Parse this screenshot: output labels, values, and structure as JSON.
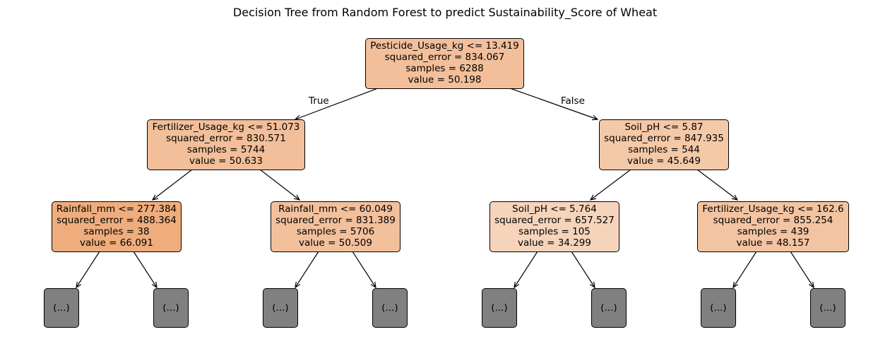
{
  "title": "Decision Tree from Random Forest to predict Sustainability_Score of Wheat",
  "edge_labels": {
    "true": "True",
    "false": "False"
  },
  "nodes": {
    "root": {
      "split": "Pesticide_Usage_kg <= 13.419",
      "squared_error": "squared_error = 834.067",
      "samples": "samples = 6288",
      "value": "value = 50.198",
      "color": "#f3bf9b"
    },
    "l": {
      "split": "Fertilizer_Usage_kg <= 51.073",
      "squared_error": "squared_error = 830.571",
      "samples": "samples = 5744",
      "value": "value = 50.633",
      "color": "#f2bf9a"
    },
    "r": {
      "split": "Soil_pH <= 5.87",
      "squared_error": "squared_error = 847.935",
      "samples": "samples = 544",
      "value": "value = 45.649",
      "color": "#f4c9a8"
    },
    "ll": {
      "split": "Rainfall_mm <= 277.384",
      "squared_error": "squared_error = 488.364",
      "samples": "samples = 38",
      "value": "value = 66.091",
      "color": "#efad7d"
    },
    "lr": {
      "split": "Rainfall_mm <= 60.049",
      "squared_error": "squared_error = 831.389",
      "samples": "samples = 5706",
      "value": "value = 50.509",
      "color": "#f3c09c"
    },
    "rl": {
      "split": "Soil_pH <= 5.764",
      "squared_error": "squared_error = 657.527",
      "samples": "samples = 105",
      "value": "value = 34.299",
      "color": "#f6d4bb"
    },
    "rr": {
      "split": "Fertilizer_Usage_kg <= 162.6",
      "squared_error": "squared_error = 855.254",
      "samples": "samples = 439",
      "value": "value = 48.157",
      "color": "#f3c4a1"
    }
  },
  "leaf_label": "(...)",
  "leaf_color": "#808080"
}
